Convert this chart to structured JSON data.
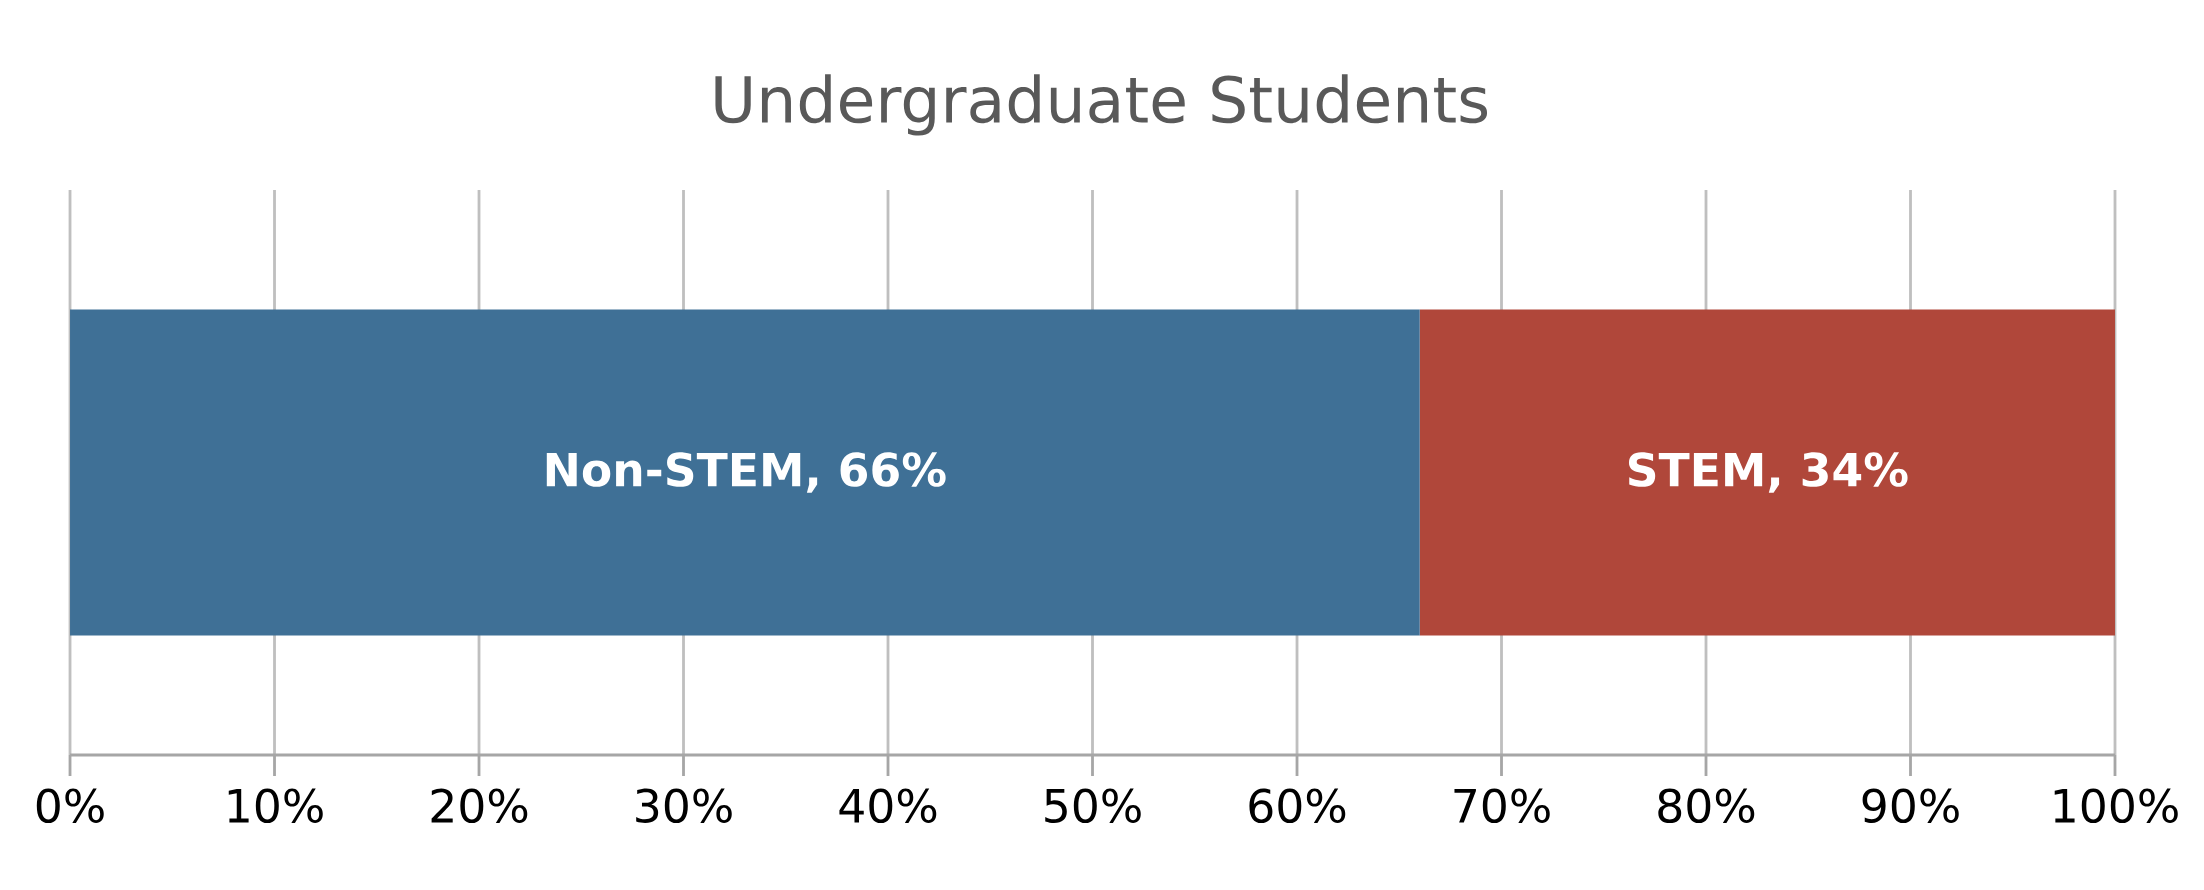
{
  "chart_data": {
    "type": "bar",
    "orientation": "horizontal",
    "stacked": true,
    "title": "Undergraduate Students",
    "categories": [
      null
    ],
    "series": [
      {
        "color": "#3f7096",
        "values": [
          66
        ],
        "value_labels": [
          "Non-STEM, 66%"
        ]
      },
      {
        "color": "#b0473a",
        "values": [
          34
        ],
        "value_labels": [
          "STEM, 34%"
        ]
      }
    ],
    "xlim": [
      0,
      100
    ],
    "xticks": [
      {
        "value": 0,
        "label": "0%"
      },
      {
        "value": 10,
        "label": "10%"
      },
      {
        "value": 20,
        "label": "20%"
      },
      {
        "value": 30,
        "label": "30%"
      },
      {
        "value": 40,
        "label": "40%"
      },
      {
        "value": 50,
        "label": "50%"
      },
      {
        "value": 60,
        "label": "60%"
      },
      {
        "value": 70,
        "label": "70%"
      },
      {
        "value": 80,
        "label": "80%"
      },
      {
        "value": 90,
        "label": "90%"
      },
      {
        "value": 100,
        "label": "100%"
      }
    ],
    "grid": "x"
  }
}
